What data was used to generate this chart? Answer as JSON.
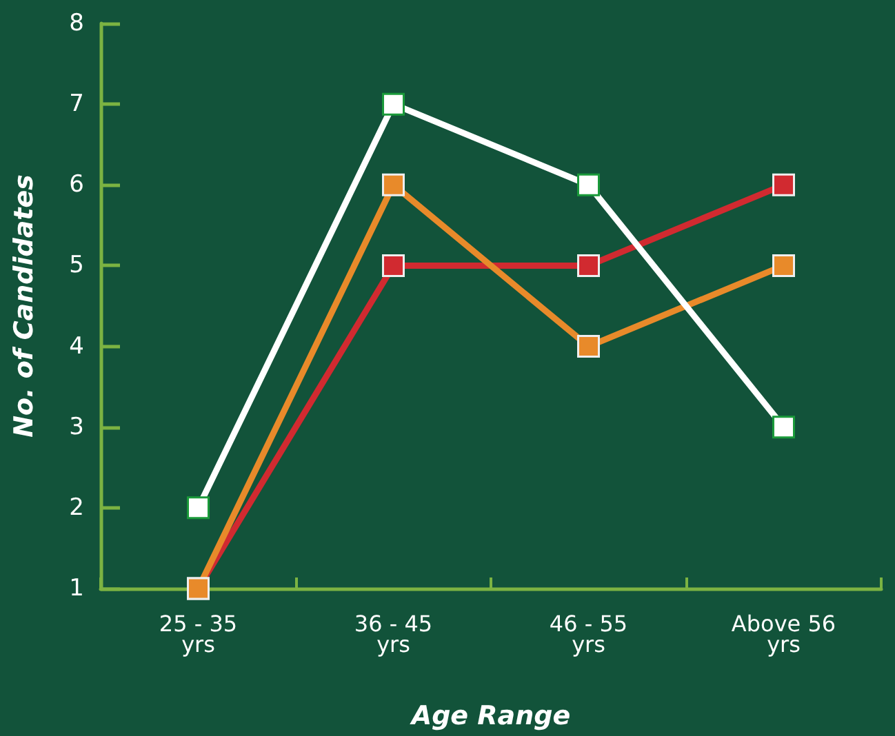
{
  "chart_data": {
    "type": "line",
    "xlabel": "Age Range",
    "ylabel": "No. of Candidates",
    "categories": [
      "25 - 35 yrs",
      "36 - 45 yrs",
      "46 - 55 yrs",
      "Above 56 yrs"
    ],
    "series": [
      {
        "color": "#d12a30",
        "values": [
          1,
          5,
          5,
          6
        ]
      },
      {
        "color": "#e88a2a",
        "values": [
          1,
          6,
          4,
          5
        ]
      },
      {
        "color": "#ffffff",
        "values": [
          2,
          7,
          6,
          3
        ]
      }
    ],
    "ylim": [
      1,
      8
    ],
    "yticks": [
      1,
      2,
      3,
      4,
      5,
      6,
      7,
      8
    ],
    "grid": false,
    "marker": "square",
    "line_style": "solid"
  }
}
